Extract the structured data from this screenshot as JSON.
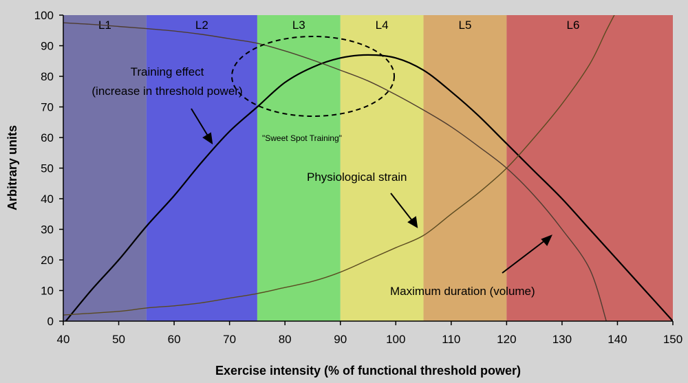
{
  "chart_data": {
    "type": "line",
    "xlabel": "Exercise intensity (% of functional threshold power)",
    "ylabel": "Arbitrary units",
    "xlim": [
      40,
      150
    ],
    "ylim": [
      0,
      100
    ],
    "x_ticks": [
      "40",
      "50",
      "60",
      "70",
      "80",
      "90",
      "100",
      "110",
      "120",
      "130",
      "140",
      "150"
    ],
    "y_ticks": [
      "0",
      "10",
      "20",
      "30",
      "40",
      "50",
      "60",
      "70",
      "80",
      "90",
      "100"
    ],
    "grid": false,
    "zones": [
      {
        "label": "L1",
        "from": 40,
        "to": 55,
        "color": "#7472a8"
      },
      {
        "label": "L2",
        "from": 55,
        "to": 75,
        "color": "#5c5cdc"
      },
      {
        "label": "L3",
        "from": 75,
        "to": 90,
        "color": "#7fdc76"
      },
      {
        "label": "L4",
        "from": 90,
        "to": 105,
        "color": "#e0e078"
      },
      {
        "label": "L5",
        "from": 105,
        "to": 120,
        "color": "#d8aa6c"
      },
      {
        "label": "L6",
        "from": 120,
        "to": 150,
        "color": "#cc6664"
      }
    ],
    "series": [
      {
        "name": "Training effect",
        "color": "#000000",
        "points": [
          [
            40,
            -1
          ],
          [
            45,
            10
          ],
          [
            50,
            20
          ],
          [
            55,
            31
          ],
          [
            60,
            41
          ],
          [
            65,
            52
          ],
          [
            70,
            62
          ],
          [
            75,
            70
          ],
          [
            80,
            78
          ],
          [
            85,
            83
          ],
          [
            90,
            86
          ],
          [
            95,
            87
          ],
          [
            100,
            86
          ],
          [
            105,
            82
          ],
          [
            110,
            75
          ],
          [
            115,
            67
          ],
          [
            120,
            58
          ],
          [
            125,
            49
          ],
          [
            130,
            40
          ],
          [
            135,
            30
          ],
          [
            140,
            20
          ],
          [
            145,
            10
          ],
          [
            150,
            0
          ]
        ]
      },
      {
        "name": "Physiological strain",
        "color": "#5a4a20",
        "points": [
          [
            40,
            2
          ],
          [
            50,
            3.2
          ],
          [
            55,
            4.3
          ],
          [
            60,
            5
          ],
          [
            65,
            6
          ],
          [
            70,
            7.5
          ],
          [
            75,
            9
          ],
          [
            80,
            11
          ],
          [
            85,
            13
          ],
          [
            90,
            16
          ],
          [
            95,
            20
          ],
          [
            100,
            24
          ],
          [
            105,
            28
          ],
          [
            110,
            35
          ],
          [
            115,
            42
          ],
          [
            120,
            50
          ],
          [
            125,
            60
          ],
          [
            130,
            71
          ],
          [
            135,
            84
          ],
          [
            138,
            95
          ],
          [
            140,
            102
          ]
        ]
      },
      {
        "name": "Maximum duration (volume)",
        "color": "#4e3c30",
        "points": [
          [
            40,
            97.5
          ],
          [
            45,
            97
          ],
          [
            50,
            96.3
          ],
          [
            55,
            95.6
          ],
          [
            60,
            94.8
          ],
          [
            65,
            93.7
          ],
          [
            70,
            92.3
          ],
          [
            75,
            90.8
          ],
          [
            80,
            88.3
          ],
          [
            85,
            85.3
          ],
          [
            90,
            82
          ],
          [
            95,
            78.5
          ],
          [
            100,
            74
          ],
          [
            105,
            69
          ],
          [
            110,
            63.5
          ],
          [
            115,
            57
          ],
          [
            120,
            50
          ],
          [
            125,
            41
          ],
          [
            130,
            30
          ],
          [
            135,
            17
          ],
          [
            138,
            0
          ]
        ]
      }
    ],
    "annotations": {
      "training_line1": "Training effect",
      "training_line2": "(increase in threshold power)",
      "strain": "Physiological strain",
      "duration": "Maximum duration (volume)",
      "sweet_spot": "\"Sweet Spot Training\""
    }
  }
}
